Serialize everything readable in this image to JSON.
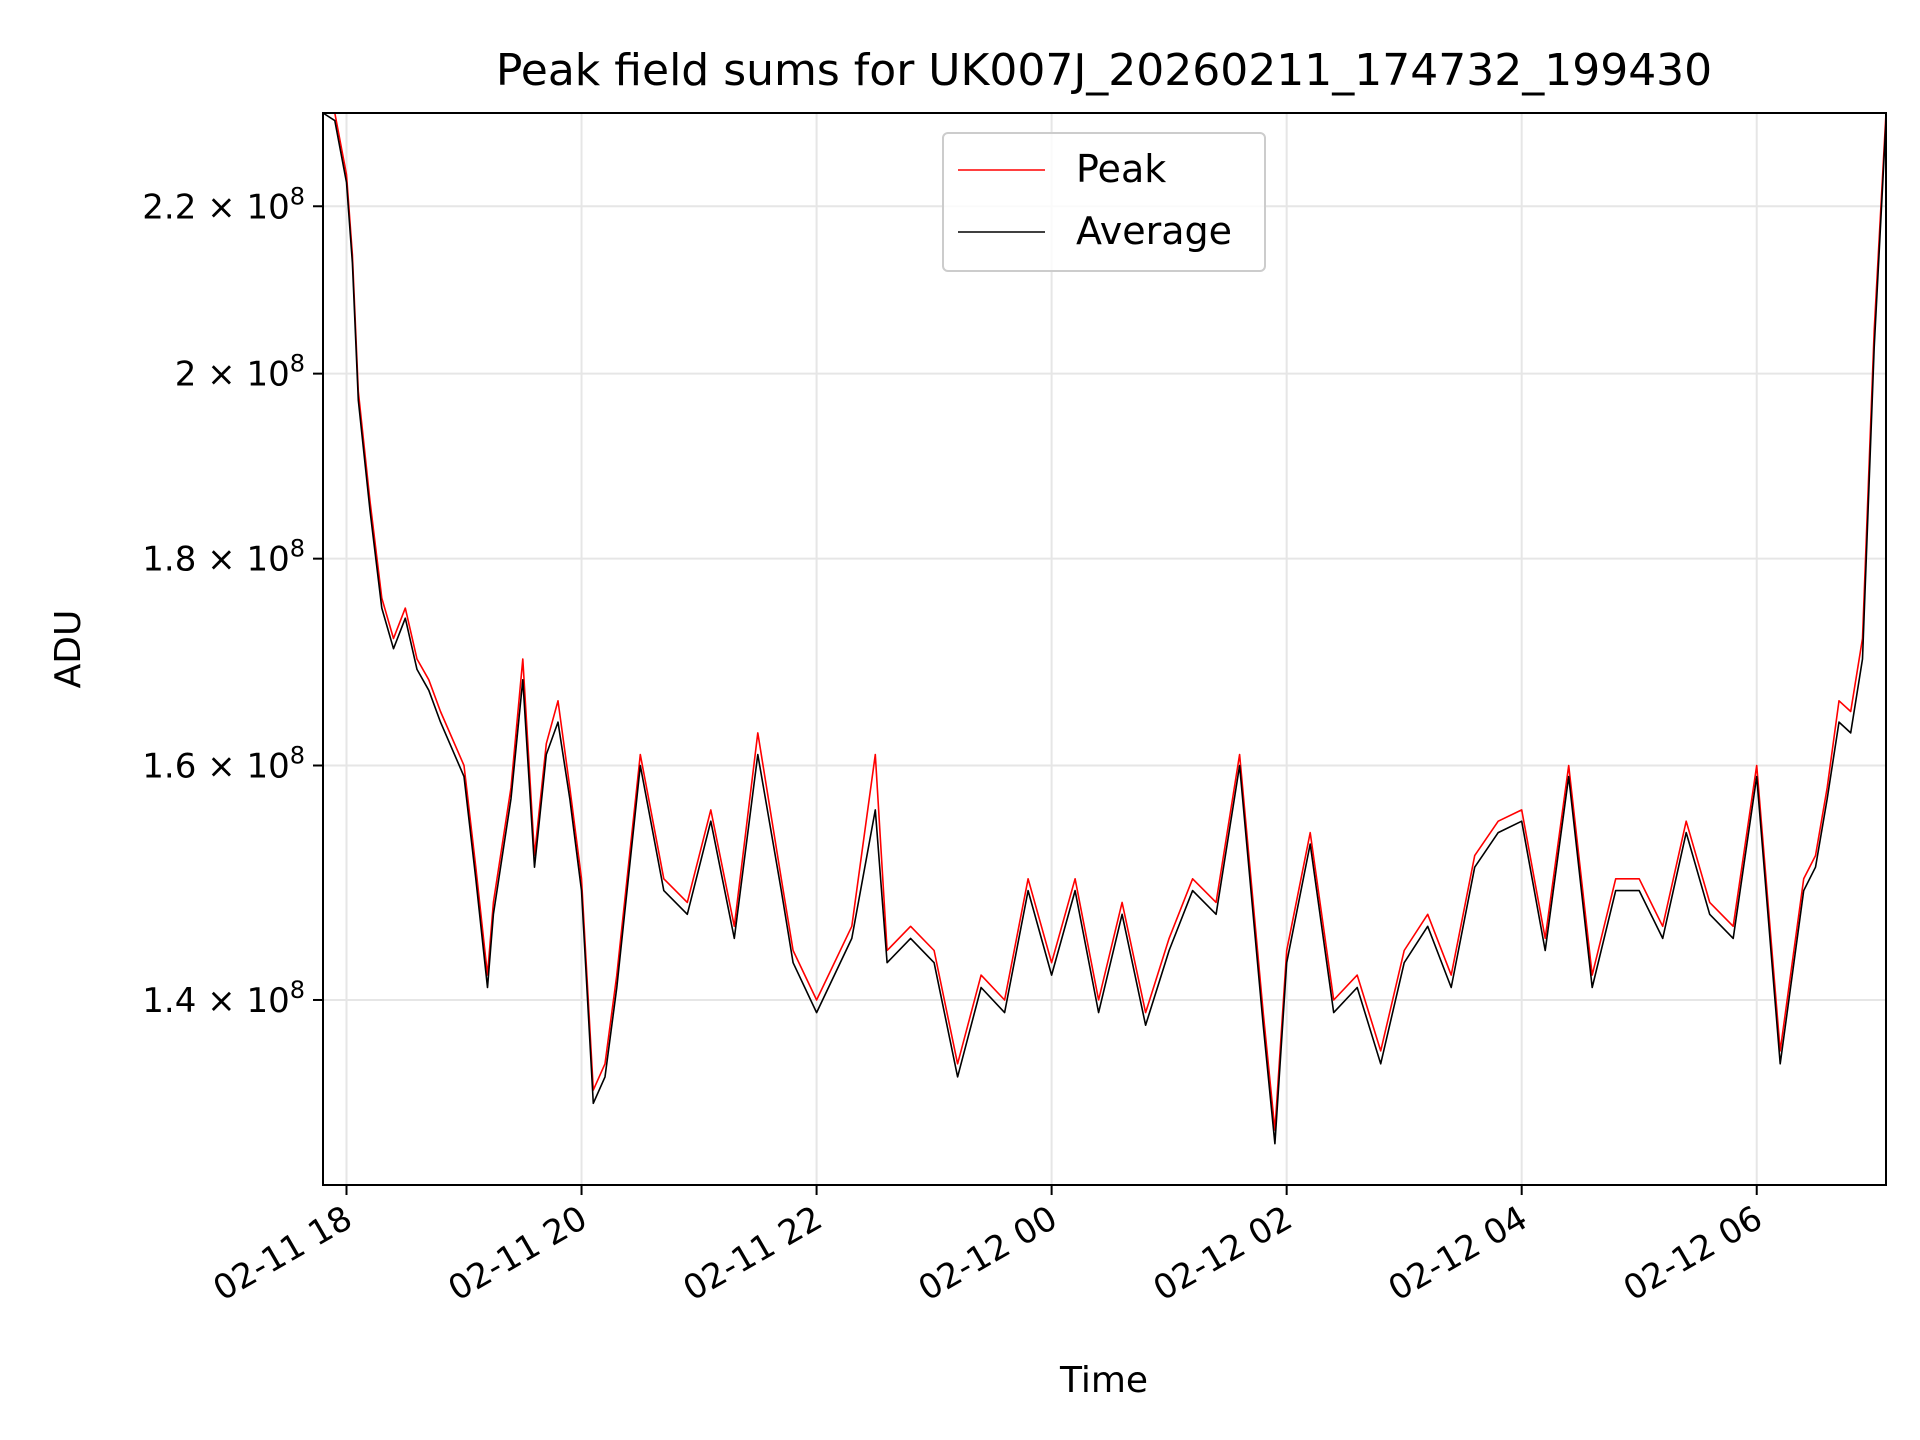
{
  "chart_data": {
    "type": "line",
    "title": "Peak field sums for UK007J_20260211_174732_199430",
    "xlabel": "Time",
    "ylabel": "ADU",
    "x_unit": "hours since 2026-02-11 00:00",
    "xlim": [
      17.8,
      31.1
    ],
    "ylim": [
      126000000,
      232000000
    ],
    "y_scale": "log",
    "grid": true,
    "legend_position": "top-center",
    "x_ticks": [
      {
        "value": 18,
        "label": "02-11 18"
      },
      {
        "value": 20,
        "label": "02-11 20"
      },
      {
        "value": 22,
        "label": "02-11 22"
      },
      {
        "value": 24,
        "label": "02-12 00"
      },
      {
        "value": 26,
        "label": "02-12 02"
      },
      {
        "value": 28,
        "label": "02-12 04"
      },
      {
        "value": 30,
        "label": "02-12 06"
      }
    ],
    "y_ticks": [
      {
        "value": 140000000,
        "mantissa": "1.4",
        "base": "10",
        "exponent": "8"
      },
      {
        "value": 160000000,
        "mantissa": "1.6",
        "base": "10",
        "exponent": "8"
      },
      {
        "value": 180000000,
        "mantissa": "1.8",
        "base": "10",
        "exponent": "8"
      },
      {
        "value": 200000000,
        "mantissa": "2",
        "base": "10",
        "exponent": "8"
      },
      {
        "value": 220000000,
        "mantissa": "2.2",
        "base": "10",
        "exponent": "8"
      }
    ],
    "x": [
      17.8,
      17.9,
      18.0,
      18.05,
      18.1,
      18.2,
      18.3,
      18.4,
      18.5,
      18.6,
      18.7,
      18.8,
      19.0,
      19.1,
      19.2,
      19.25,
      19.4,
      19.5,
      19.6,
      19.7,
      19.8,
      19.9,
      20.0,
      20.1,
      20.2,
      20.3,
      20.5,
      20.7,
      20.9,
      21.1,
      21.3,
      21.5,
      21.7,
      21.8,
      22.0,
      22.3,
      22.5,
      22.6,
      22.8,
      23.0,
      23.2,
      23.4,
      23.6,
      23.8,
      24.0,
      24.2,
      24.4,
      24.6,
      24.8,
      25.0,
      25.2,
      25.4,
      25.6,
      25.8,
      25.9,
      26.0,
      26.2,
      26.4,
      26.6,
      26.8,
      27.0,
      27.2,
      27.4,
      27.6,
      27.8,
      28.0,
      28.2,
      28.4,
      28.6,
      28.8,
      29.0,
      29.2,
      29.4,
      29.6,
      29.8,
      30.0,
      30.2,
      30.4,
      30.5,
      30.6,
      30.7,
      30.8,
      30.9,
      31.0,
      31.1
    ],
    "series": [
      {
        "name": "Peak",
        "color": "#ff0000",
        "values": [
          232000000,
          232000000,
          224000000,
          214000000,
          198000000,
          186000000,
          176000000,
          172000000,
          175000000,
          170000000,
          168000000,
          165000000,
          160000000,
          151000000,
          142000000,
          148000000,
          158000000,
          170000000,
          152000000,
          162000000,
          166000000,
          158000000,
          150000000,
          133000000,
          135000000,
          142000000,
          161000000,
          150000000,
          148000000,
          156000000,
          146000000,
          163000000,
          150000000,
          144000000,
          140000000,
          146000000,
          161000000,
          144000000,
          146000000,
          144000000,
          135000000,
          142000000,
          140000000,
          150000000,
          143000000,
          150000000,
          140000000,
          148000000,
          139000000,
          145000000,
          150000000,
          148000000,
          161000000,
          139000000,
          130000000,
          144000000,
          154000000,
          140000000,
          142000000,
          136000000,
          144000000,
          147000000,
          142000000,
          152000000,
          155000000,
          156000000,
          145000000,
          160000000,
          142000000,
          150000000,
          150000000,
          146000000,
          155000000,
          148000000,
          146000000,
          160000000,
          136000000,
          150000000,
          152000000,
          158000000,
          166000000,
          165000000,
          172000000,
          205000000,
          232000000
        ]
      },
      {
        "name": "Average",
        "color": "#000000",
        "values": [
          232000000,
          231000000,
          223000000,
          213000000,
          197000000,
          185000000,
          175000000,
          171000000,
          174000000,
          169000000,
          167000000,
          164000000,
          159000000,
          150000000,
          141000000,
          147000000,
          157000000,
          168000000,
          151000000,
          161000000,
          164000000,
          157000000,
          149000000,
          132000000,
          134000000,
          141000000,
          160000000,
          149000000,
          147000000,
          155000000,
          145000000,
          161000000,
          149000000,
          143000000,
          139000000,
          145000000,
          156000000,
          143000000,
          145000000,
          143000000,
          134000000,
          141000000,
          139000000,
          149000000,
          142000000,
          149000000,
          139000000,
          147000000,
          138000000,
          144000000,
          149000000,
          147000000,
          160000000,
          138000000,
          129000000,
          143000000,
          153000000,
          139000000,
          141000000,
          135000000,
          143000000,
          146000000,
          141000000,
          151000000,
          154000000,
          155000000,
          144000000,
          159000000,
          141000000,
          149000000,
          149000000,
          145000000,
          154000000,
          147000000,
          145000000,
          159000000,
          135000000,
          149000000,
          151000000,
          157000000,
          164000000,
          163000000,
          170000000,
          203000000,
          231000000
        ]
      }
    ]
  }
}
